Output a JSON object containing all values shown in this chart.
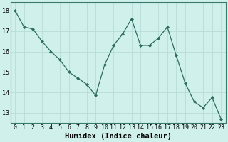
{
  "x": [
    0,
    1,
    2,
    3,
    4,
    5,
    6,
    7,
    8,
    9,
    10,
    11,
    12,
    13,
    14,
    15,
    16,
    17,
    18,
    19,
    20,
    21,
    22,
    23
  ],
  "y": [
    18.0,
    17.2,
    17.1,
    16.5,
    16.0,
    15.6,
    15.0,
    14.7,
    14.4,
    13.85,
    15.35,
    16.3,
    16.85,
    17.6,
    16.3,
    16.3,
    16.65,
    17.2,
    15.8,
    14.45,
    13.55,
    13.25,
    13.75,
    12.7
  ],
  "line_color": "#2d6b5e",
  "marker": "D",
  "marker_size": 2.0,
  "xlabel": "Humidex (Indice chaleur)",
  "xlabel_fontsize": 7.5,
  "bg_color": "#cff0eb",
  "grid_color": "#b8ddd8",
  "ylim": [
    12.5,
    18.4
  ],
  "xlim": [
    -0.5,
    23.5
  ],
  "yticks": [
    13,
    14,
    15,
    16,
    17,
    18
  ],
  "xticks": [
    0,
    1,
    2,
    3,
    4,
    5,
    6,
    7,
    8,
    9,
    10,
    11,
    12,
    13,
    14,
    15,
    16,
    17,
    18,
    19,
    20,
    21,
    22,
    23
  ],
  "tick_fontsize": 6.0,
  "linewidth": 0.9
}
